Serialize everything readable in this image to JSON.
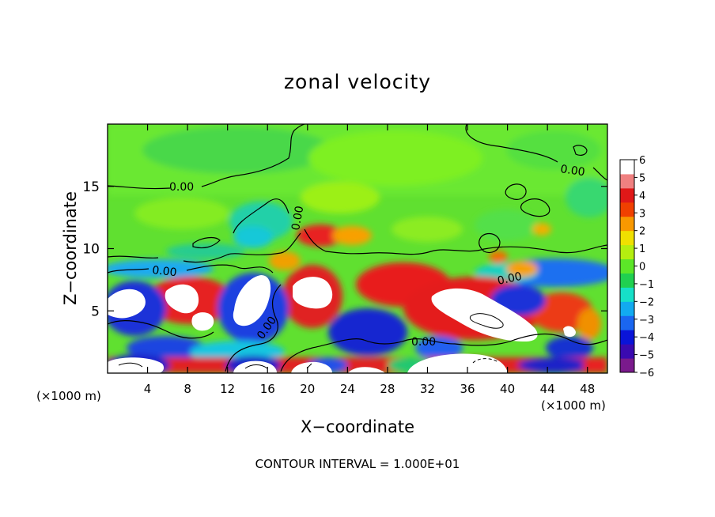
{
  "chart_data": {
    "type": "heatmap",
    "title": "zonal velocity",
    "xlabel": "X−coordinate",
    "ylabel": "Z−coordinate",
    "x_unit_left": "(×1000 m)",
    "x_unit_right": "(×1000 m)",
    "xlim": [
      0,
      50
    ],
    "ylim": [
      0,
      20
    ],
    "x_ticks": [
      4,
      8,
      12,
      16,
      20,
      24,
      28,
      32,
      36,
      40,
      44,
      48
    ],
    "y_ticks": [
      5,
      10,
      15
    ],
    "colorbar": {
      "range": [
        -6,
        6
      ],
      "ticks": [
        6,
        5,
        4,
        3,
        2,
        1,
        0,
        -1,
        -2,
        -3,
        -4,
        -5,
        -6
      ],
      "tick_labels": [
        "6",
        "5",
        "4",
        "3",
        "2",
        "1",
        "0",
        "−1",
        "−2",
        "−3",
        "−4",
        "−5",
        "−6"
      ],
      "colors": [
        "#7a1a8c",
        "#3a0ab0",
        "#0a14d8",
        "#1a66f0",
        "#12aaf0",
        "#16e0c8",
        "#20d050",
        "#5ce628",
        "#b4ee10",
        "#f0e000",
        "#f89800",
        "#f04000",
        "#e01818",
        "#f08080",
        "#ffffff"
      ]
    },
    "contour_labels": [
      "0.00",
      "0.00",
      "0.00",
      "0.00",
      "0.00",
      "0.00",
      "0.00"
    ],
    "footer": "CONTOUR INTERVAL = 1.000E+01"
  }
}
